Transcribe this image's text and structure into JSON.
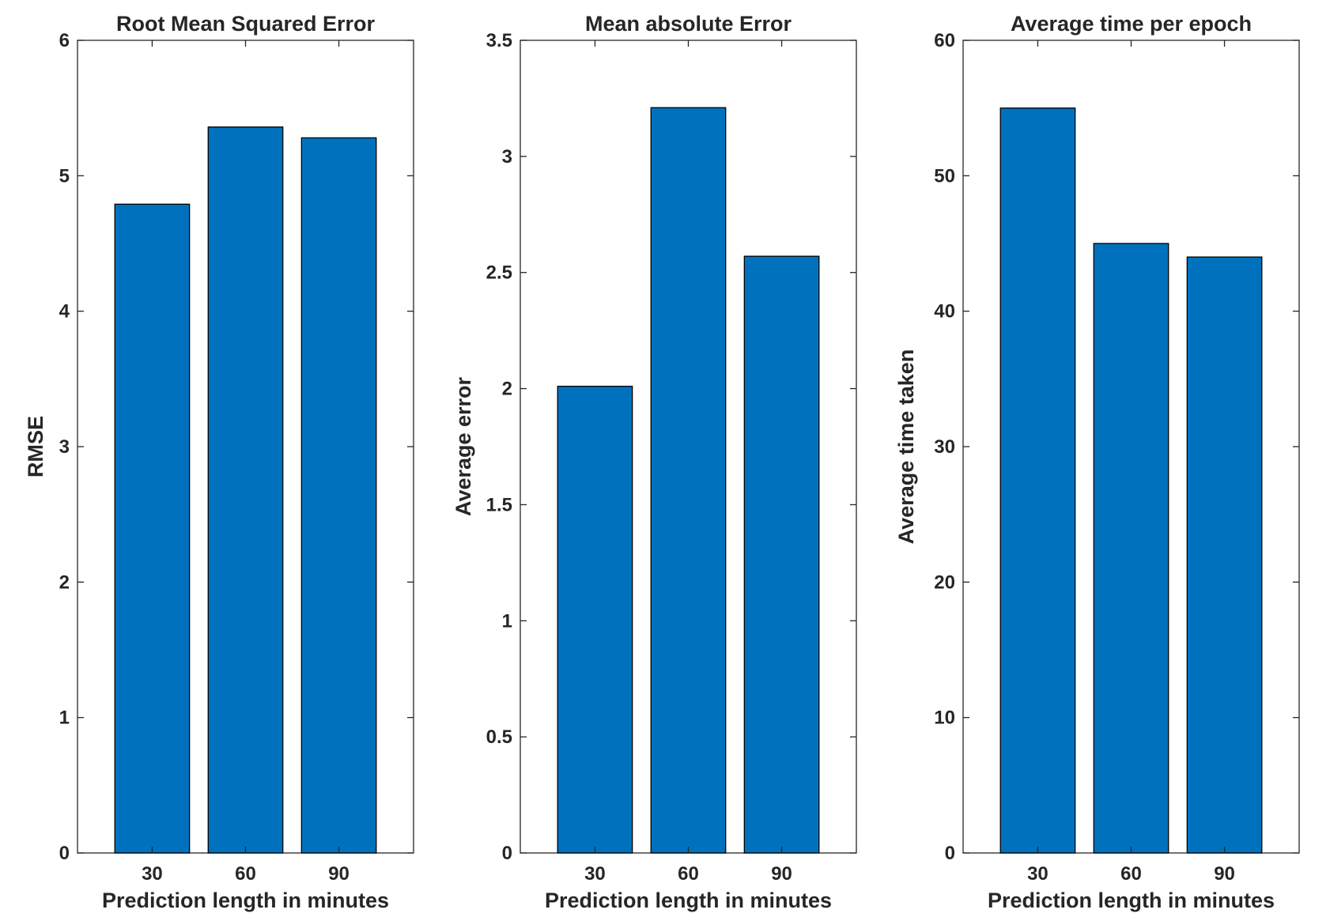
{
  "colors": {
    "bar": "#0072bd",
    "axis": "#262626",
    "background": "#ffffff"
  },
  "chart_data": [
    {
      "type": "bar",
      "title": "Root Mean Squared Error",
      "xlabel": "Prediction length in minutes",
      "ylabel": "RMSE",
      "categories": [
        "30",
        "60",
        "90"
      ],
      "values": [
        4.79,
        5.36,
        5.28
      ],
      "ylim": [
        0,
        6
      ],
      "yticks": [
        0,
        1,
        2,
        3,
        4,
        5,
        6
      ],
      "ytick_labels": [
        "0",
        "1",
        "2",
        "3",
        "4",
        "5",
        "6"
      ],
      "grid": false,
      "legend": "none"
    },
    {
      "type": "bar",
      "title": "Mean absolute Error",
      "xlabel": "Prediction length in minutes",
      "ylabel": "Average error",
      "categories": [
        "30",
        "60",
        "90"
      ],
      "values": [
        2.01,
        3.21,
        2.57
      ],
      "ylim": [
        0,
        3.5
      ],
      "yticks": [
        0,
        0.5,
        1,
        1.5,
        2,
        2.5,
        3,
        3.5
      ],
      "ytick_labels": [
        "0",
        "0.5",
        "1",
        "1.5",
        "2",
        "2.5",
        "3",
        "3.5"
      ],
      "grid": false,
      "legend": "none"
    },
    {
      "type": "bar",
      "title": "Average time per epoch",
      "xlabel": "Prediction length in minutes",
      "ylabel": "Average time taken",
      "categories": [
        "30",
        "60",
        "90"
      ],
      "values": [
        55,
        45,
        44
      ],
      "ylim": [
        0,
        60
      ],
      "yticks": [
        0,
        10,
        20,
        30,
        40,
        50,
        60
      ],
      "ytick_labels": [
        "0",
        "10",
        "20",
        "30",
        "40",
        "50",
        "60"
      ],
      "grid": false,
      "legend": "none"
    }
  ]
}
